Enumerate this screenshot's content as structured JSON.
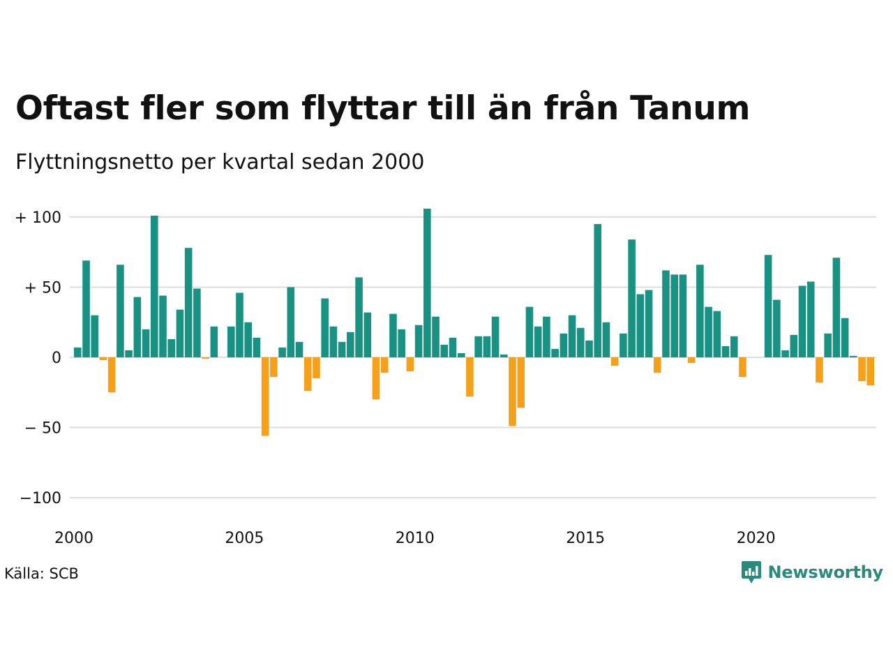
{
  "title": "Oftast fler som flyttar till än från Tanum",
  "subtitle": "Flyttningsnetto per kvartal sedan 2000",
  "source": "Källa: SCB",
  "brand": {
    "name": "Newsworthy",
    "icon": "newsworthy-logo-icon"
  },
  "colors": {
    "positive": "#1a9283",
    "negative": "#f5a01a",
    "grid": "#dddddd"
  },
  "chart_data": {
    "type": "bar",
    "x_start_year": 2000,
    "periods_per_year": 4,
    "xticks": [
      {
        "year": 2000,
        "label": "2000"
      },
      {
        "year": 2005,
        "label": "2005"
      },
      {
        "year": 2010,
        "label": "2010"
      },
      {
        "year": 2015,
        "label": "2015"
      },
      {
        "year": 2020,
        "label": "2020"
      }
    ],
    "yticks": [
      {
        "value": 100,
        "label": "+ 100"
      },
      {
        "value": 50,
        "label": "+  50"
      },
      {
        "value": 0,
        "label": "0"
      },
      {
        "value": -50,
        "label": "− 50"
      },
      {
        "value": -100,
        "label": "−100"
      }
    ],
    "ylim": [
      -100,
      100
    ],
    "grid": true,
    "values": [
      7,
      69,
      30,
      -2,
      -25,
      66,
      5,
      43,
      20,
      101,
      44,
      13,
      34,
      78,
      49,
      -1,
      22,
      0,
      22,
      46,
      25,
      14,
      -56,
      -14,
      7,
      50,
      11,
      -24,
      -15,
      42,
      22,
      11,
      18,
      57,
      32,
      -30,
      -11,
      31,
      20,
      -10,
      23,
      106,
      29,
      9,
      14,
      3,
      -28,
      15,
      15,
      29,
      2,
      -49,
      -36,
      36,
      22,
      29,
      6,
      17,
      30,
      21,
      12,
      95,
      25,
      -6,
      17,
      84,
      45,
      48,
      -11,
      62,
      59,
      59,
      -4,
      66,
      36,
      33,
      8,
      15,
      -14,
      0,
      0,
      73,
      41,
      5,
      16,
      51,
      54,
      -18,
      17,
      71,
      28,
      1,
      -17,
      -20
    ]
  }
}
